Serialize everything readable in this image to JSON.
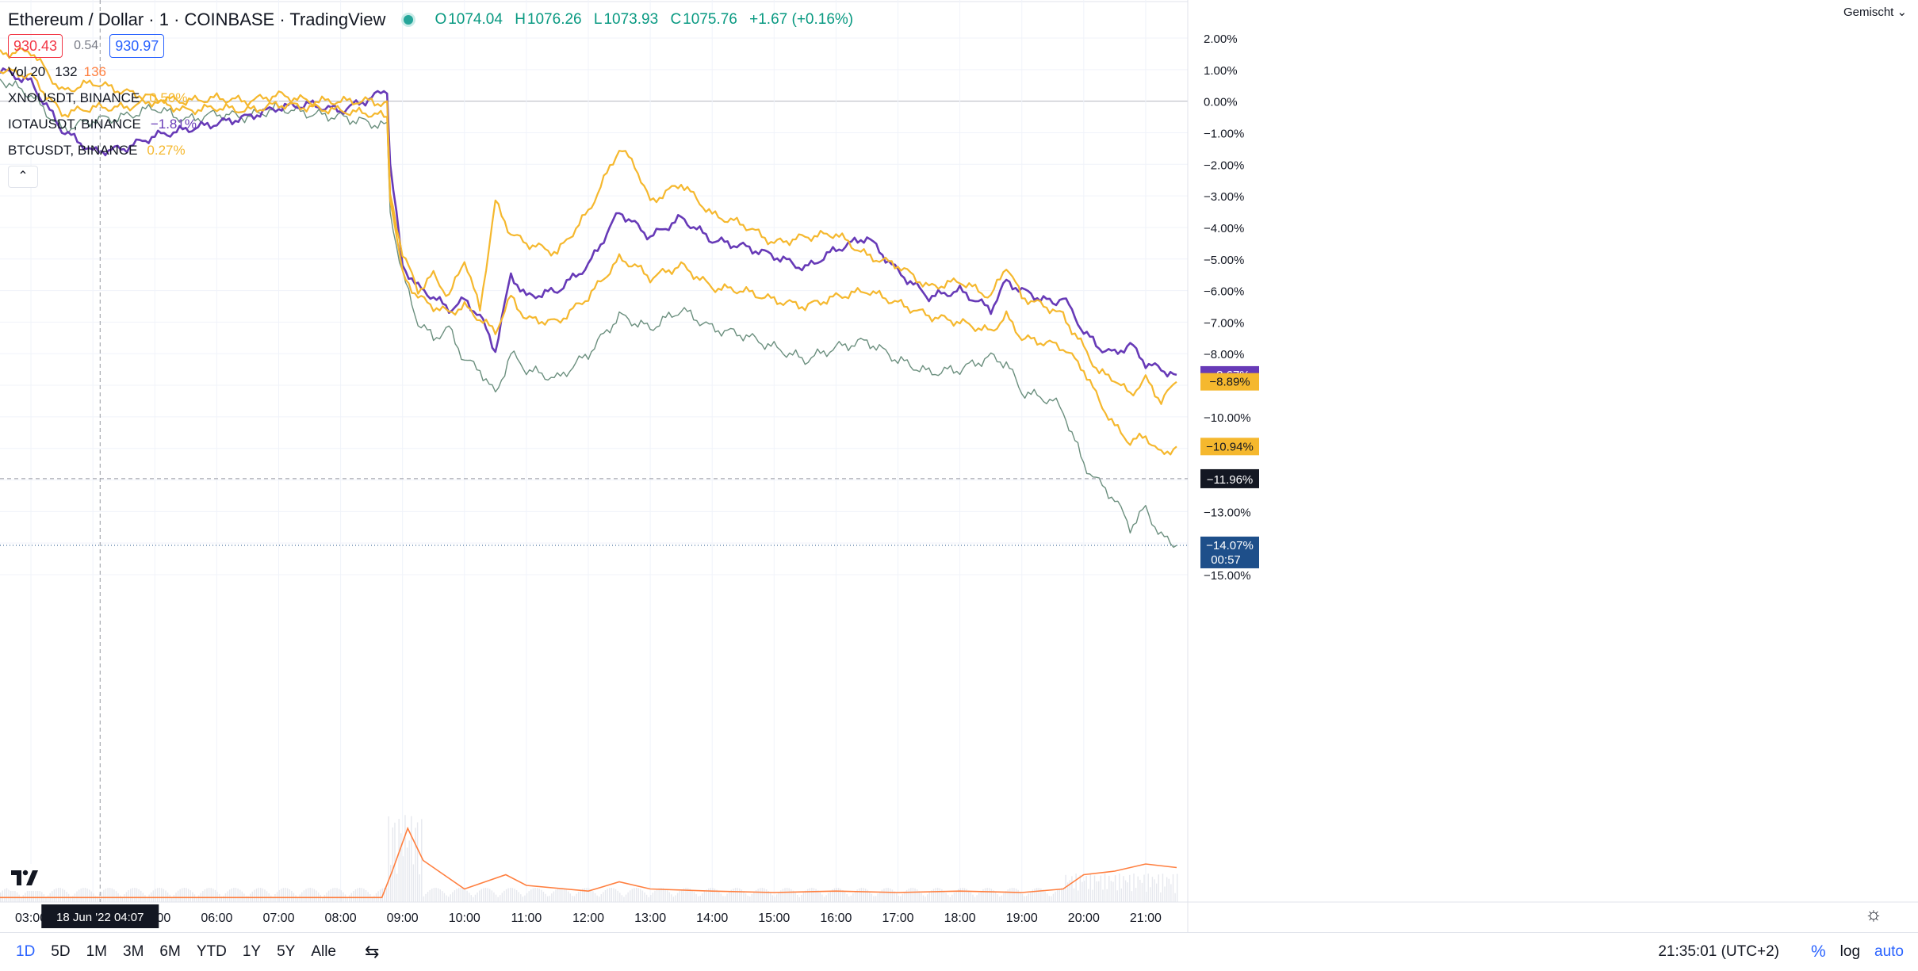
{
  "header": {
    "title": "Ethereum / Dollar · 1 · COINBASE · TradingView",
    "ohlc": [
      {
        "k": "O",
        "v": "1074.04"
      },
      {
        "k": "H",
        "v": "1076.26"
      },
      {
        "k": "L",
        "v": "1073.93"
      },
      {
        "k": "C",
        "v": "1075.76"
      }
    ],
    "change": "+1.67 (+0.16%)",
    "bid": "930.43",
    "spread": "0.54",
    "ask": "930.97",
    "volume_label": "Vol 20",
    "volume_values": [
      "132",
      "136"
    ],
    "scale_mode": "Gemischt"
  },
  "compare_series": [
    {
      "name": "XNOUSDT, BINANCE",
      "value": "0.50%",
      "color": "#f5b82e"
    },
    {
      "name": "IOTAUSDT, BINANCE",
      "value": "−1.81%",
      "color": "#673ab7"
    },
    {
      "name": "BTCUSDT, BINANCE",
      "value": "0.27%",
      "color": "#f5b82e"
    }
  ],
  "colors": {
    "eth": "#6b8f7e",
    "iota": "#673ab7",
    "xno": "#f5b82e",
    "btc": "#f5b82e",
    "volume_ma": "#ff7f3f",
    "crosshair_label": "#131722",
    "last_price": "#1e4f8a"
  },
  "chart_data": {
    "type": "line",
    "x_unit": "time (18 Jun '22, local UTC+2)",
    "xlim": [
      "02:30",
      "21:40"
    ],
    "ylim": [
      -15.5,
      2.5
    ],
    "y_ticks": [
      "2.00%",
      "1.00%",
      "0.00%",
      "−1.00%",
      "−2.00%",
      "−3.00%",
      "−4.00%",
      "−5.00%",
      "−6.00%",
      "−7.00%",
      "−8.00%",
      "−9.00%",
      "−10.00%",
      "−11.00%",
      "−12.00%",
      "−13.00%",
      "−14.00%",
      "−15.00%"
    ],
    "x_ticks": [
      "03:00",
      "04:00",
      "05:00",
      "06:00",
      "07:00",
      "08:00",
      "09:00",
      "10:00",
      "11:00",
      "12:00",
      "13:00",
      "14:00",
      "15:00",
      "16:00",
      "17:00",
      "18:00",
      "19:00",
      "20:00",
      "21:00"
    ],
    "series": [
      {
        "key": "eth",
        "x": [
          "02:30",
          "03:00",
          "03:30",
          "04:00",
          "04:30",
          "05:00",
          "05:30",
          "06:00",
          "06:30",
          "07:00",
          "07:30",
          "08:00",
          "08:30",
          "08:45",
          "08:48",
          "09:00",
          "09:15",
          "09:30",
          "09:45",
          "10:00",
          "10:15",
          "10:30",
          "10:45",
          "11:00",
          "11:30",
          "12:00",
          "12:30",
          "12:45",
          "13:00",
          "13:30",
          "14:00",
          "14:30",
          "15:00",
          "15:30",
          "16:00",
          "16:30",
          "17:00",
          "17:30",
          "18:00",
          "18:30",
          "18:45",
          "19:00",
          "19:30",
          "19:40",
          "20:00",
          "20:15",
          "20:30",
          "20:45",
          "21:00",
          "21:15",
          "21:30"
        ],
        "y": [
          0.7,
          0.2,
          -0.9,
          -0.6,
          -0.5,
          -0.2,
          -0.6,
          -0.4,
          -0.5,
          -0.2,
          -0.4,
          -0.5,
          -0.7,
          -0.8,
          -3.5,
          -5.5,
          -7.0,
          -7.5,
          -7.2,
          -8.2,
          -8.5,
          -9.3,
          -8.0,
          -8.5,
          -8.8,
          -8.0,
          -6.8,
          -7.0,
          -7.2,
          -6.6,
          -7.2,
          -7.4,
          -7.8,
          -8.2,
          -7.8,
          -7.6,
          -8.2,
          -8.6,
          -8.5,
          -8.1,
          -8.3,
          -9.2,
          -9.5,
          -9.8,
          -11.5,
          -12.1,
          -12.6,
          -13.5,
          -12.9,
          -13.8,
          -14.07
        ]
      },
      {
        "key": "iota",
        "x": [
          "02:30",
          "03:00",
          "03:30",
          "04:00",
          "04:30",
          "05:00",
          "05:30",
          "06:00",
          "06:30",
          "07:00",
          "07:30",
          "08:00",
          "08:30",
          "08:45",
          "08:48",
          "09:00",
          "09:15",
          "09:30",
          "09:45",
          "10:00",
          "10:15",
          "10:30",
          "10:45",
          "11:00",
          "11:30",
          "12:00",
          "12:30",
          "12:45",
          "13:00",
          "13:30",
          "14:00",
          "14:30",
          "15:00",
          "15:30",
          "16:00",
          "16:30",
          "17:00",
          "17:30",
          "18:00",
          "18:30",
          "18:45",
          "19:00",
          "19:30",
          "19:40",
          "20:00",
          "20:15",
          "20:30",
          "20:45",
          "21:00",
          "21:15",
          "21:30"
        ],
        "y": [
          1.0,
          0.6,
          -0.9,
          -1.6,
          -1.5,
          -1.1,
          -0.9,
          -0.7,
          -0.5,
          -0.2,
          -0.1,
          -0.3,
          0.1,
          0.4,
          -2.0,
          -5.2,
          -5.9,
          -6.2,
          -6.6,
          -6.3,
          -6.8,
          -7.9,
          -5.5,
          -6.2,
          -6.0,
          -5.2,
          -3.5,
          -3.9,
          -4.3,
          -3.7,
          -4.4,
          -4.6,
          -4.9,
          -5.3,
          -4.7,
          -4.3,
          -5.4,
          -6.2,
          -6.0,
          -6.6,
          -5.7,
          -6.0,
          -6.4,
          -6.2,
          -7.3,
          -7.8,
          -8.0,
          -7.7,
          -8.3,
          -8.5,
          -8.67
        ]
      },
      {
        "key": "xno",
        "x": [
          "02:30",
          "03:00",
          "03:30",
          "04:00",
          "04:30",
          "05:00",
          "05:30",
          "06:00",
          "06:30",
          "07:00",
          "07:30",
          "08:00",
          "08:30",
          "08:45",
          "08:48",
          "09:00",
          "09:15",
          "09:30",
          "09:45",
          "10:00",
          "10:15",
          "10:30",
          "10:45",
          "11:00",
          "11:30",
          "12:00",
          "12:30",
          "12:45",
          "13:00",
          "13:30",
          "14:00",
          "14:30",
          "15:00",
          "15:30",
          "16:00",
          "16:30",
          "17:00",
          "17:30",
          "18:00",
          "18:30",
          "18:45",
          "19:00",
          "19:30",
          "19:40",
          "20:00",
          "20:15",
          "20:30",
          "20:45",
          "21:00",
          "21:15",
          "21:30"
        ],
        "y": [
          1.5,
          1.6,
          0.3,
          0.6,
          0.3,
          0.1,
          0.0,
          0.1,
          0.0,
          0.2,
          0.0,
          0.0,
          0.0,
          -0.1,
          -3.0,
          -4.8,
          -6.0,
          -5.5,
          -6.2,
          -5.0,
          -6.6,
          -3.2,
          -4.2,
          -4.5,
          -4.8,
          -3.5,
          -1.5,
          -2.0,
          -3.2,
          -2.6,
          -3.6,
          -3.9,
          -4.5,
          -4.3,
          -4.2,
          -4.9,
          -5.2,
          -5.9,
          -5.7,
          -6.2,
          -5.2,
          -6.2,
          -6.6,
          -6.8,
          -7.8,
          -8.6,
          -8.8,
          -9.3,
          -8.8,
          -9.5,
          -8.89
        ]
      },
      {
        "key": "btc",
        "x": [
          "02:30",
          "03:00",
          "03:30",
          "04:00",
          "04:30",
          "05:00",
          "05:30",
          "06:00",
          "06:30",
          "07:00",
          "07:30",
          "08:00",
          "08:30",
          "08:45",
          "08:48",
          "09:00",
          "09:15",
          "09:30",
          "09:45",
          "10:00",
          "10:15",
          "10:30",
          "10:45",
          "11:00",
          "11:30",
          "12:00",
          "12:30",
          "12:45",
          "13:00",
          "13:30",
          "14:00",
          "14:30",
          "15:00",
          "15:30",
          "16:00",
          "16:30",
          "17:00",
          "17:30",
          "18:00",
          "18:30",
          "18:45",
          "19:00",
          "19:30",
          "19:40",
          "20:00",
          "20:15",
          "20:30",
          "20:45",
          "21:00",
          "21:15",
          "21:30"
        ],
        "y": [
          1.0,
          0.8,
          -0.4,
          -0.2,
          -0.2,
          0.0,
          -0.3,
          -0.2,
          -0.3,
          -0.1,
          -0.2,
          -0.3,
          -0.4,
          -0.5,
          -3.0,
          -5.5,
          -6.2,
          -6.5,
          -6.7,
          -6.5,
          -6.9,
          -7.3,
          -6.2,
          -6.9,
          -7.0,
          -6.2,
          -5.0,
          -5.2,
          -5.6,
          -5.2,
          -5.9,
          -6.0,
          -6.3,
          -6.5,
          -6.2,
          -6.0,
          -6.4,
          -6.8,
          -7.0,
          -7.3,
          -6.8,
          -7.5,
          -7.7,
          -7.8,
          -8.5,
          -9.5,
          -10.3,
          -10.8,
          -10.6,
          -11.2,
          -10.94
        ]
      }
    ],
    "last_values": [
      {
        "label": "−8.67%",
        "y": -8.67,
        "color": "#673ab7"
      },
      {
        "label": "−8.89%",
        "y": -8.89,
        "color": "#f5b82e"
      },
      {
        "label": "−10.94%",
        "y": -10.94,
        "color": "#f5b82e"
      },
      {
        "label": "−14.07%",
        "y": -14.07,
        "color": "#1e4f8a",
        "sub": "00:57"
      }
    ],
    "crosshair": {
      "x": "04:07",
      "y": -11.96,
      "x_label": "18 Jun '22  04:07",
      "y_label": "−11.96%"
    },
    "volume_ma": {
      "x": [
        "02:30",
        "08:40",
        "08:50",
        "09:05",
        "09:20",
        "09:40",
        "10:00",
        "10:20",
        "10:40",
        "11:00",
        "12:00",
        "12:30",
        "13:00",
        "14:00",
        "15:00",
        "16:00",
        "17:00",
        "18:00",
        "19:00",
        "19:40",
        "20:00",
        "20:30",
        "21:00",
        "21:30"
      ],
      "y": [
        0.03,
        0.03,
        0.4,
        1.0,
        0.55,
        0.35,
        0.15,
        0.25,
        0.35,
        0.2,
        0.12,
        0.25,
        0.15,
        0.12,
        0.1,
        0.12,
        0.1,
        0.12,
        0.1,
        0.15,
        0.35,
        0.4,
        0.5,
        0.45
      ]
    }
  },
  "bottom_bar": {
    "ranges": [
      "1D",
      "5D",
      "1M",
      "3M",
      "6M",
      "YTD",
      "1Y",
      "5Y",
      "Alle"
    ],
    "active_range": "1D",
    "clock": "21:35:01 (UTC+2)",
    "pct": "%",
    "log": "log",
    "auto": "auto"
  }
}
